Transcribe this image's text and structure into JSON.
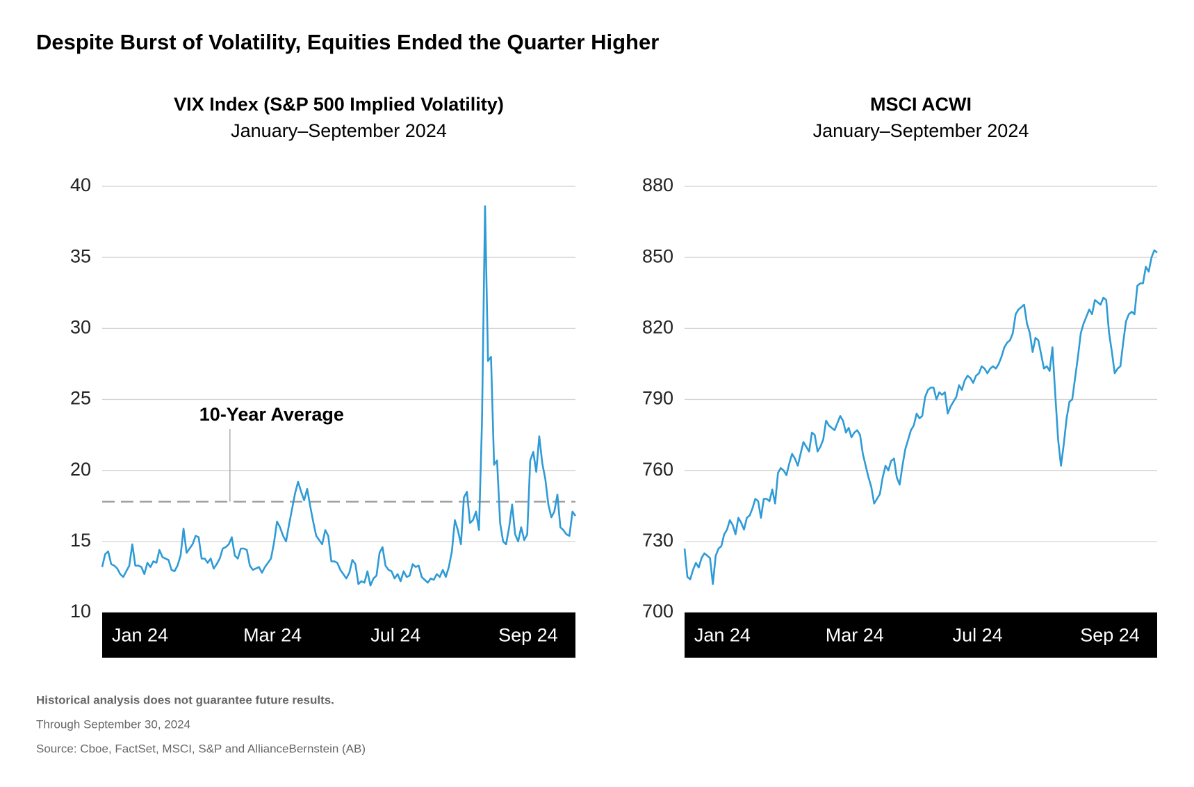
{
  "title": "Despite Burst of Volatility, Equities Ended the Quarter Higher",
  "chart_data": [
    {
      "type": "line",
      "title": "VIX Index (S&P 500 Implied Volatility)",
      "subtitle": "January–September 2024",
      "x_labels": [
        "Jan 24",
        "Mar 24",
        "Jul 24",
        "Sep 24"
      ],
      "color": "#2e9bd6",
      "ylim": [
        10,
        40
      ],
      "yticks": [
        10,
        15,
        20,
        25,
        30,
        35,
        40
      ],
      "grid": true,
      "reference_line": {
        "label": "10-Year Average",
        "value": 17.8
      },
      "values": [
        13.2,
        14.1,
        14.3,
        13.4,
        13.3,
        13.1,
        12.7,
        12.5,
        12.9,
        13.3,
        14.8,
        13.3,
        13.3,
        13.2,
        12.7,
        13.5,
        13.2,
        13.6,
        13.5,
        14.4,
        13.9,
        13.8,
        13.7,
        13.0,
        12.9,
        13.3,
        14.0,
        15.9,
        14.2,
        14.5,
        14.8,
        15.4,
        15.3,
        13.8,
        13.8,
        13.5,
        13.8,
        13.1,
        13.4,
        13.8,
        14.5,
        14.6,
        14.8,
        15.3,
        14.0,
        13.8,
        14.5,
        14.5,
        14.4,
        13.3,
        13.0,
        13.1,
        13.2,
        12.8,
        13.2,
        13.5,
        13.8,
        14.9,
        16.4,
        16.0,
        15.4,
        15.0,
        16.2,
        17.3,
        18.4,
        19.2,
        18.5,
        17.9,
        18.7,
        17.5,
        16.4,
        15.4,
        15.1,
        14.8,
        15.8,
        15.4,
        13.6,
        13.6,
        13.5,
        13.0,
        12.7,
        12.4,
        12.8,
        13.7,
        13.4,
        12.0,
        12.2,
        12.1,
        12.9,
        11.9,
        12.4,
        12.6,
        14.2,
        14.6,
        13.3,
        13.0,
        12.9,
        12.4,
        12.7,
        12.2,
        12.9,
        12.5,
        12.6,
        13.4,
        13.2,
        13.3,
        12.5,
        12.3,
        12.1,
        12.4,
        12.3,
        12.7,
        12.5,
        13.0,
        12.5,
        13.2,
        14.3,
        16.5,
        15.8,
        14.8,
        18.1,
        18.5,
        16.3,
        16.5,
        17.1,
        15.8,
        23.4,
        38.6,
        27.7,
        28.0,
        20.4,
        20.7,
        16.3,
        15.0,
        14.8,
        16.0,
        17.6,
        15.5,
        15.0,
        16.0,
        15.1,
        15.5,
        20.7,
        21.3,
        19.9,
        22.4,
        20.5,
        19.4,
        17.6,
        16.7,
        17.1,
        18.3,
        16.0,
        15.8,
        15.5,
        15.4,
        17.1,
        16.8
      ]
    },
    {
      "type": "line",
      "title": "MSCI ACWI",
      "subtitle": "January–September 2024",
      "x_labels": [
        "Jan 24",
        "Mar 24",
        "Jul 24",
        "Sep 24"
      ],
      "color": "#2e9bd6",
      "ylim": [
        700,
        880
      ],
      "yticks": [
        700,
        730,
        760,
        790,
        820,
        850,
        880
      ],
      "grid": true,
      "values": [
        727,
        715,
        714,
        718,
        721,
        719,
        723,
        725,
        724,
        723,
        712,
        724,
        727,
        728,
        733,
        735,
        739,
        737,
        733,
        740,
        738,
        735,
        740,
        741,
        744,
        748,
        747,
        740,
        748,
        748,
        747,
        752,
        746,
        759,
        761,
        760,
        758,
        763,
        767,
        765,
        762,
        767,
        772,
        770,
        768,
        776,
        775,
        768,
        770,
        773,
        781,
        779,
        778,
        777,
        780,
        783,
        781,
        776,
        778,
        774,
        776,
        777,
        775,
        767,
        762,
        757,
        753,
        746,
        748,
        750,
        757,
        762,
        760,
        764,
        765,
        757,
        754,
        762,
        769,
        773,
        777,
        779,
        784,
        782,
        783,
        791,
        794,
        795,
        795,
        790,
        793,
        792,
        793,
        784,
        787,
        789,
        791,
        796,
        794,
        798,
        800,
        799,
        797,
        800,
        801,
        804,
        803,
        801,
        803,
        804,
        803,
        805,
        808,
        812,
        814,
        815,
        818,
        826,
        828,
        829,
        830,
        822,
        818,
        810,
        816,
        815,
        809,
        803,
        804,
        802,
        812,
        792,
        773,
        762,
        771,
        782,
        789,
        790,
        799,
        808,
        818,
        822,
        825,
        828,
        826,
        832,
        831,
        830,
        833,
        832,
        818,
        810,
        801,
        803,
        804,
        814,
        823,
        826,
        827,
        826,
        838,
        839,
        839,
        846,
        844,
        850,
        853,
        852
      ]
    }
  ],
  "footnotes": [
    "Historical analysis does not guarantee future results.",
    "Through September 30, 2024",
    "Source: Cboe, FactSet, MSCI, S&P and AllianceBernstein (AB)"
  ]
}
